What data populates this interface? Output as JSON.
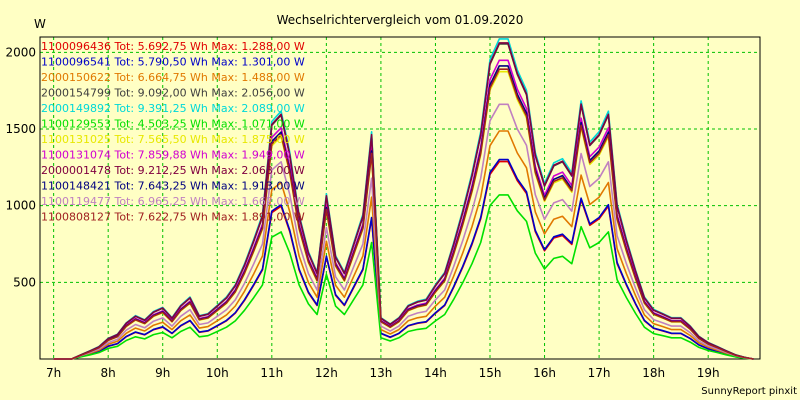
{
  "chart_data": {
    "type": "line",
    "title": "Wechselrichtervergleich vom 01.09.2020",
    "ylabel": "W",
    "credit": "SunnyReport pinxit",
    "ylim": [
      0,
      2100
    ],
    "xlim": [
      6.75,
      19.95
    ],
    "grid": true,
    "legend_position": "top-left",
    "colors": {
      "background": "#ffffc4",
      "grid": "#00c000",
      "axis": "#000000"
    },
    "y_ticks": [
      {
        "value": 500,
        "label": "500"
      },
      {
        "value": 1000,
        "label": "1000"
      },
      {
        "value": 1500,
        "label": "1500"
      },
      {
        "value": 2000,
        "label": "2000"
      }
    ],
    "x_ticks": [
      {
        "value": 7,
        "label": "7h"
      },
      {
        "value": 8,
        "label": "8h"
      },
      {
        "value": 9,
        "label": "9h"
      },
      {
        "value": 10,
        "label": "10h"
      },
      {
        "value": 11,
        "label": "11h"
      },
      {
        "value": 12,
        "label": "12h"
      },
      {
        "value": 13,
        "label": "13h"
      },
      {
        "value": 14,
        "label": "14h"
      },
      {
        "value": 15,
        "label": "15h"
      },
      {
        "value": 16,
        "label": "16h"
      },
      {
        "value": 17,
        "label": "17h"
      },
      {
        "value": 18,
        "label": "18h"
      },
      {
        "value": 19,
        "label": "19h"
      }
    ],
    "x": [
      7.0,
      7.17,
      7.33,
      7.5,
      7.67,
      7.83,
      8.0,
      8.17,
      8.33,
      8.5,
      8.67,
      8.83,
      9.0,
      9.17,
      9.33,
      9.5,
      9.67,
      9.83,
      10.0,
      10.17,
      10.33,
      10.5,
      10.67,
      10.83,
      11.0,
      11.17,
      11.33,
      11.5,
      11.67,
      11.83,
      12.0,
      12.17,
      12.33,
      12.5,
      12.67,
      12.83,
      13.0,
      13.17,
      13.33,
      13.5,
      13.67,
      13.83,
      14.0,
      14.17,
      14.33,
      14.5,
      14.67,
      14.83,
      15.0,
      15.17,
      15.33,
      15.5,
      15.67,
      15.83,
      16.0,
      16.17,
      16.33,
      16.5,
      16.67,
      16.83,
      17.0,
      17.17,
      17.33,
      17.5,
      17.67,
      17.83,
      18.0,
      18.17,
      18.33,
      18.5,
      18.67,
      18.83,
      19.0,
      19.17,
      19.33,
      19.5,
      19.67,
      19.83
    ],
    "reference_series": [
      0,
      0,
      0,
      20,
      40,
      60,
      100,
      120,
      175,
      210,
      190,
      230,
      250,
      200,
      260,
      300,
      210,
      220,
      260,
      300,
      360,
      460,
      580,
      700,
      1150,
      1200,
      1000,
      700,
      520,
      420,
      800,
      500,
      420,
      560,
      700,
      1100,
      200,
      170,
      200,
      260,
      280,
      290,
      360,
      420,
      560,
      720,
      900,
      1100,
      1450,
      1550,
      1550,
      1400,
      1300,
      1000,
      850,
      950,
      970,
      900,
      1250,
      1050,
      1100,
      1200,
      750,
      580,
      430,
      300,
      240,
      220,
      200,
      200,
      160,
      110,
      80,
      60,
      40,
      20,
      8,
      0
    ],
    "series": [
      {
        "label": "1100096436 Tot: 5.692,75 Wh Max: 1.288,00 W",
        "color": "#e00000",
        "scale": 0.8305
      },
      {
        "label": "1100096541 Tot: 5.790,50 Wh Max: 1.301,00 W",
        "color": "#0000c8",
        "scale": 0.8388
      },
      {
        "label": "2000150622 Tot: 6.664,75 Wh Max: 1.488,00 W",
        "color": "#e07800",
        "scale": 0.9594
      },
      {
        "label": "2000154799 Tot: 9.092,00 Wh Max: 2.056,00 W",
        "color": "#404040",
        "scale": 1.3256
      },
      {
        "label": "2000149892 Tot: 9.391,25 Wh Max: 2.089,00 W",
        "color": "#00d8d8",
        "scale": 1.3468
      },
      {
        "label": "1100129553 Tot: 4.503,25 Wh Max: 1.071,00 W",
        "color": "#00e000",
        "scale": 0.6905
      },
      {
        "label": "1100131025 Tot: 7.565,50 Wh Max: 1.875,00 W",
        "color": "#e8e800",
        "scale": 1.2089
      },
      {
        "label": "1100131074 Tot: 7.859,88 Wh Max: 1.949,00 W",
        "color": "#d000d0",
        "scale": 1.2566
      },
      {
        "label": "2000001478 Tot: 9.212,25 Wh Max: 2.063,00 W",
        "color": "#800040",
        "scale": 1.3301
      },
      {
        "label": "1100148421 Tot: 7.643,25 Wh Max: 1.913,00 W",
        "color": "#000080",
        "scale": 1.2334
      },
      {
        "label": "1100119477 Tot: 6.965,25 Wh Max: 1.662,00 W",
        "color": "#c080c0",
        "scale": 1.0716
      },
      {
        "label": "1100808127 Tot: 7.622,75 Wh Max: 1.891,00 W",
        "color": "#a02020",
        "scale": 1.2192
      }
    ]
  }
}
